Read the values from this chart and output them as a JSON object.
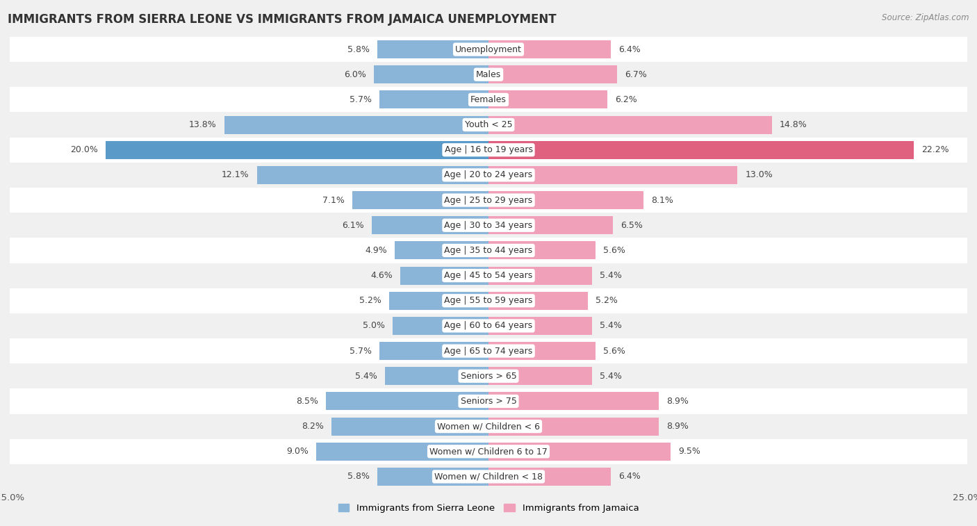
{
  "title": "IMMIGRANTS FROM SIERRA LEONE VS IMMIGRANTS FROM JAMAICA UNEMPLOYMENT",
  "source": "Source: ZipAtlas.com",
  "categories": [
    "Unemployment",
    "Males",
    "Females",
    "Youth < 25",
    "Age | 16 to 19 years",
    "Age | 20 to 24 years",
    "Age | 25 to 29 years",
    "Age | 30 to 34 years",
    "Age | 35 to 44 years",
    "Age | 45 to 54 years",
    "Age | 55 to 59 years",
    "Age | 60 to 64 years",
    "Age | 65 to 74 years",
    "Seniors > 65",
    "Seniors > 75",
    "Women w/ Children < 6",
    "Women w/ Children 6 to 17",
    "Women w/ Children < 18"
  ],
  "sierra_leone": [
    5.8,
    6.0,
    5.7,
    13.8,
    20.0,
    12.1,
    7.1,
    6.1,
    4.9,
    4.6,
    5.2,
    5.0,
    5.7,
    5.4,
    8.5,
    8.2,
    9.0,
    5.8
  ],
  "jamaica": [
    6.4,
    6.7,
    6.2,
    14.8,
    22.2,
    13.0,
    8.1,
    6.5,
    5.6,
    5.4,
    5.2,
    5.4,
    5.6,
    5.4,
    8.9,
    8.9,
    9.5,
    6.4
  ],
  "sierra_leone_color": "#8ab4d8",
  "jamaica_color": "#f0a0b8",
  "sierra_leone_highlight_color": "#5a9ac8",
  "jamaica_highlight_color": "#e06080",
  "highlight_row": 4,
  "background_color": "#f0f0f0",
  "row_color_even": "#ffffff",
  "row_color_odd": "#f0f0f0",
  "axis_limit": 25.0,
  "label_fontsize": 9.0,
  "category_fontsize": 9.0,
  "title_fontsize": 12,
  "legend_fontsize": 9.5,
  "source_fontsize": 8.5
}
